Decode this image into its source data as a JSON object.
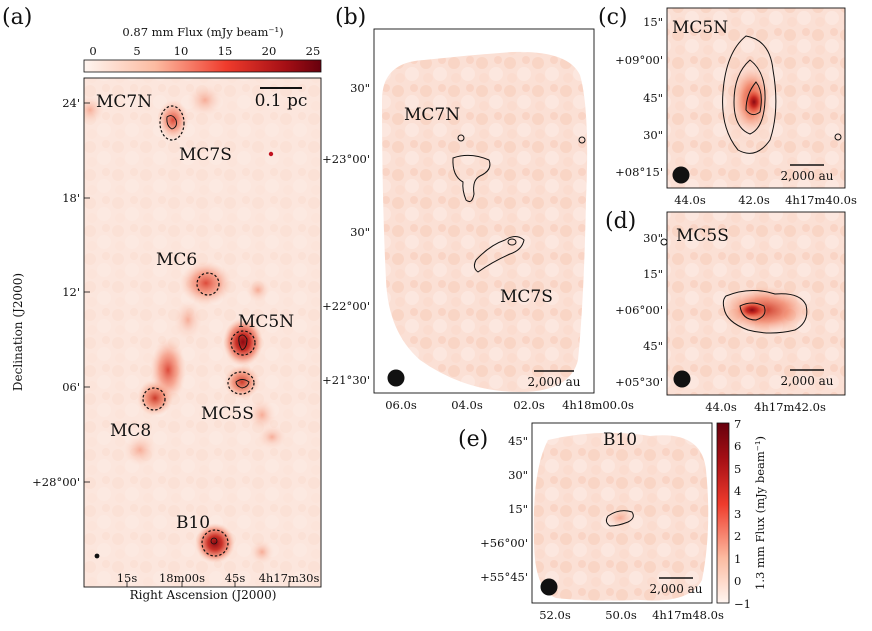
{
  "panels": [
    {
      "id": "a",
      "label": "(a)",
      "colorbar": {
        "label": "0.87 mm Flux (mJy beam⁻¹)",
        "ticks": [
          "0",
          "5",
          "10",
          "15",
          "20",
          "25"
        ],
        "range": [
          0,
          27
        ]
      },
      "ylabel": "Declination (J2000)",
      "xlabel": "Right Ascension (J2000)",
      "y_ticks": [
        "24'",
        "18'",
        "12'",
        "06'",
        "+28°00'"
      ],
      "x_ticks": [
        "15s",
        "18m00s",
        "45s",
        "4h17m30s"
      ],
      "scalebar": "0.1 pc",
      "sources": [
        "MC7N",
        "MC7S",
        "MC6",
        "MC5N",
        "MC5S",
        "MC8",
        "B10"
      ]
    },
    {
      "id": "b",
      "label": "(b)",
      "y_ticks": [
        "30\"",
        "+23°00'",
        "30\"",
        "+22°00'",
        "+21°30'"
      ],
      "x_ticks": [
        "06.0s",
        "04.0s",
        "02.0s",
        "4h18m00.0s"
      ],
      "sources": [
        "MC7N",
        "MC7S"
      ],
      "scalebar": "2,000 au"
    },
    {
      "id": "c",
      "label": "(c)",
      "y_ticks": [
        "15\"",
        "+09°00'",
        "45\"",
        "30\"",
        "+08°15'"
      ],
      "x_ticks": [
        "44.0s",
        "42.0s",
        "4h17m40.0s"
      ],
      "sources": [
        "MC5N"
      ],
      "scalebar": "2,000 au"
    },
    {
      "id": "d",
      "label": "(d)",
      "y_ticks": [
        "30\"",
        "15\"",
        "+06°00'",
        "45\"",
        "+05°30'"
      ],
      "x_ticks": [
        "44.0s",
        "4h17m42.0s"
      ],
      "sources": [
        "MC5S"
      ],
      "scalebar": "2,000 au"
    },
    {
      "id": "e",
      "label": "(e)",
      "y_ticks": [
        "45\"",
        "30\"",
        "15\"",
        "+56°00'",
        "+55°45'"
      ],
      "x_ticks": [
        "52.0s",
        "50.0s",
        "4h17m48.0s"
      ],
      "sources": [
        "B10"
      ],
      "scalebar": "2,000 au",
      "colorbar": {
        "label": "1.3 mm Flux (mJy beam⁻¹)",
        "ticks": [
          "−1",
          "0",
          "1",
          "2",
          "3",
          "4",
          "5",
          "6",
          "7"
        ],
        "range": [
          -1,
          7
        ]
      }
    }
  ],
  "chart_data": [
    {
      "type": "heatmap",
      "panel": "(a)",
      "title": "0.87 mm Flux (mJy beam⁻¹)",
      "xlabel": "Right Ascension (J2000)",
      "ylabel": "Declination (J2000)",
      "colorbar_range": [
        0,
        27
      ],
      "annotated_sources": [
        "MC7N",
        "MC7S",
        "MC6",
        "MC5N",
        "MC5S",
        "MC8",
        "B10"
      ],
      "scale_bar": "0.1 pc"
    },
    {
      "type": "heatmap",
      "panel": "(b)",
      "title": "1.3 mm Flux",
      "sources": [
        "MC7N",
        "MC7S"
      ],
      "scale_bar": "2,000 au"
    },
    {
      "type": "heatmap",
      "panel": "(c)",
      "title": "1.3 mm Flux",
      "sources": [
        "MC5N"
      ],
      "scale_bar": "2,000 au"
    },
    {
      "type": "heatmap",
      "panel": "(d)",
      "title": "1.3 mm Flux",
      "sources": [
        "MC5S"
      ],
      "scale_bar": "2,000 au"
    },
    {
      "type": "heatmap",
      "panel": "(e)",
      "title": "1.3 mm Flux",
      "sources": [
        "B10"
      ],
      "scale_bar": "2,000 au",
      "colorbar_range": [
        -1,
        7
      ]
    }
  ]
}
